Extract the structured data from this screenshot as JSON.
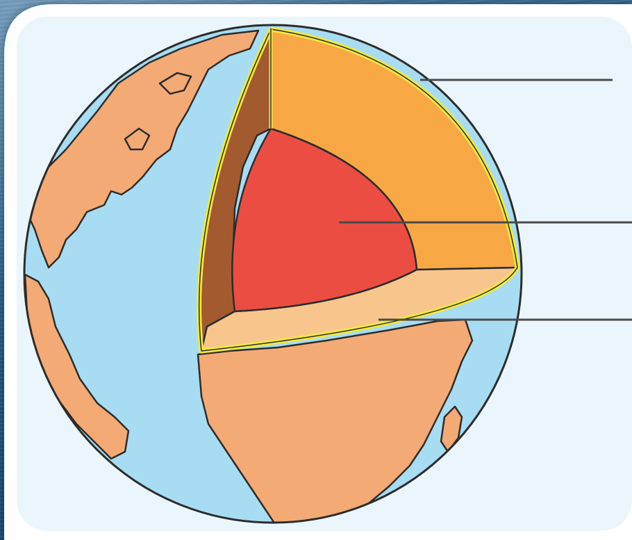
{
  "diagram": {
    "subject": "earth-layers-cutaway",
    "colors": {
      "ocean": "#a8dcf2",
      "land": "#f3aa74",
      "crust_rim": "#f2e93c",
      "mantle": "#f7a845",
      "mantle_inner_wall": "#a35a2f",
      "core": "#ec4d43",
      "lower_face": "#f8c68c",
      "panel": "#ebf6fc",
      "leader_line": "#4a4a4a"
    },
    "label_lines": [
      {
        "target": "crust"
      },
      {
        "target": "core"
      },
      {
        "target": "mantle"
      }
    ]
  }
}
